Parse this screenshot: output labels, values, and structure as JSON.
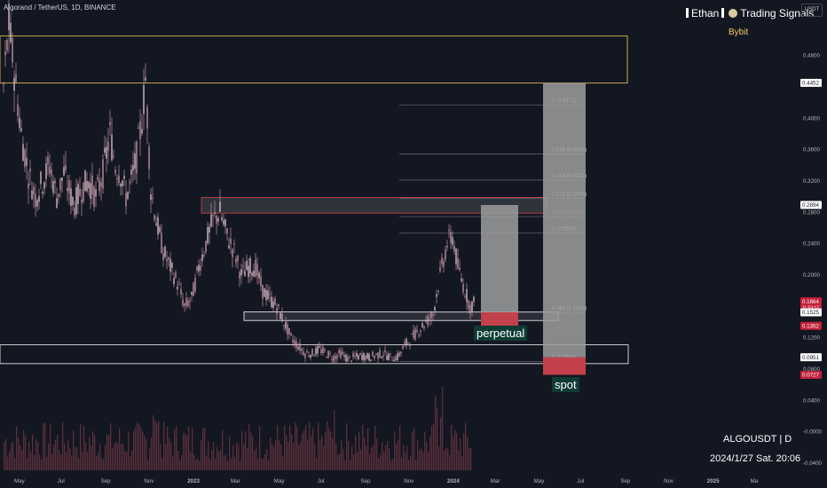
{
  "header": {
    "symbol_line": "Algorand / TetherUS, 1D, BINANCE",
    "brand_name": "Ethan",
    "brand_suffix": "Trading Signals",
    "exchange": "Bybit",
    "currency_button": "USDT",
    "watermark_symbol": "ALGOUSDT | D",
    "watermark_date": "2024/1/27 Sat. 20:06"
  },
  "colors": {
    "background": "#131722",
    "candle": "#d9a3b5",
    "volume": "#5a2f3a",
    "yellow_zone": "#d4b84a",
    "red_zone": "#c2414a",
    "white_zone": "#e0e0e0",
    "box_fill": "#9e9e9e",
    "red_box": "#c2414a"
  },
  "chart_data": {
    "type": "candlestick",
    "y_axis_ticks": [
      "0.4800",
      "0.4000",
      "0.3600",
      "0.3200",
      "0.2800",
      "0.2400",
      "0.2000",
      "0.1200",
      "0.0800",
      "0.0400",
      "-0.0000",
      "-0.0400"
    ],
    "y_axis_tick_values": [
      0.48,
      0.4,
      0.36,
      0.32,
      0.28,
      0.24,
      0.2,
      0.12,
      0.08,
      0.04,
      0.0,
      -0.04
    ],
    "x_axis_ticks": [
      "May",
      "Jul",
      "Sep",
      "Nov",
      "2023",
      "Mar",
      "May",
      "Jul",
      "Sep",
      "Nov",
      "2024",
      "Mar",
      "May",
      "Jul",
      "Sep",
      "Nov",
      "2025",
      "Ma"
    ],
    "x_axis_tick_index": [
      0,
      1,
      2,
      3,
      4,
      5,
      6,
      7,
      8,
      9,
      10,
      11,
      12,
      13,
      14,
      15,
      16,
      17
    ],
    "price_tags": [
      {
        "text": "0.4452",
        "value": 0.4452,
        "style": "white"
      },
      {
        "text": "0.2894",
        "value": 0.2894,
        "style": "white"
      },
      {
        "text": "0.1664",
        "value": 0.1664,
        "style": "red"
      },
      {
        "text": "11:53:17",
        "value": 0.159,
        "style": "red_small"
      },
      {
        "text": "0.1525",
        "value": 0.1525,
        "style": "white"
      },
      {
        "text": "0.1352",
        "value": 0.1352,
        "style": "red"
      },
      {
        "text": "0.0951",
        "value": 0.0951,
        "style": "white"
      },
      {
        "text": "0.0727",
        "value": 0.0727,
        "style": "red"
      }
    ],
    "fib_levels": [
      {
        "label": "2 (0.4171)",
        "value": 0.4171
      },
      {
        "label": "1.618 (0.3546)",
        "value": 0.3546
      },
      {
        "label": "1.414 (0.3212)",
        "value": 0.3212
      },
      {
        "label": "1.272 (0.2980)",
        "value": 0.298
      },
      {
        "label": "1.13 (0.2747)",
        "value": 0.2747
      },
      {
        "label": "1 (0.2535)",
        "value": 0.2535
      },
      {
        "label": "0.382 (0.1523)",
        "value": 0.1523
      },
      {
        "label": "0 (0.0898)",
        "value": 0.0898
      }
    ],
    "zones": [
      {
        "name": "yellow-resistance",
        "top": 0.505,
        "bottom": 0.445,
        "color": "#d4b84a"
      },
      {
        "name": "red-resistance",
        "top": 0.299,
        "bottom": 0.279,
        "color": "#c2414a"
      },
      {
        "name": "white-support-upper",
        "top": 0.153,
        "bottom": 0.142,
        "color": "#e0e0e0"
      },
      {
        "name": "white-support-lower",
        "top": 0.111,
        "bottom": 0.087,
        "color": "#e0e0e0"
      }
    ],
    "position_boxes": [
      {
        "name": "perpetual",
        "top": 0.2894,
        "entry": 0.1525,
        "stop": 0.1352
      },
      {
        "name": "spot",
        "top": 0.4452,
        "entry": 0.0951,
        "stop": 0.0727
      }
    ],
    "price_path": [
      [
        0,
        0.44
      ],
      [
        0.3,
        0.52
      ],
      [
        0.6,
        0.46
      ],
      [
        1,
        0.38
      ],
      [
        1.4,
        0.33
      ],
      [
        1.8,
        0.3
      ],
      [
        2.2,
        0.32
      ],
      [
        2.6,
        0.34
      ],
      [
        3,
        0.3
      ],
      [
        3.4,
        0.33
      ],
      [
        3.8,
        0.3
      ],
      [
        4,
        0.29
      ],
      [
        4.4,
        0.31
      ],
      [
        4.8,
        0.32
      ],
      [
        5.2,
        0.3
      ],
      [
        5.6,
        0.33
      ],
      [
        6,
        0.38
      ],
      [
        6.3,
        0.34
      ],
      [
        6.6,
        0.33
      ],
      [
        6.9,
        0.3
      ],
      [
        7.2,
        0.32
      ],
      [
        7.5,
        0.35
      ],
      [
        7.8,
        0.4
      ],
      [
        8,
        0.45
      ],
      [
        8.3,
        0.31
      ],
      [
        8.6,
        0.27
      ],
      [
        9,
        0.23
      ],
      [
        9.4,
        0.21
      ],
      [
        9.8,
        0.19
      ],
      [
        10.2,
        0.16
      ],
      [
        10.6,
        0.17
      ],
      [
        11,
        0.21
      ],
      [
        11.4,
        0.24
      ],
      [
        11.8,
        0.27
      ],
      [
        12.2,
        0.28
      ],
      [
        12.6,
        0.25
      ],
      [
        13,
        0.23
      ],
      [
        13.4,
        0.2
      ],
      [
        13.8,
        0.21
      ],
      [
        14.2,
        0.21
      ],
      [
        14.6,
        0.18
      ],
      [
        15,
        0.17
      ],
      [
        15.4,
        0.16
      ],
      [
        15.8,
        0.14
      ],
      [
        16.2,
        0.12
      ],
      [
        16.6,
        0.11
      ],
      [
        17,
        0.1
      ],
      [
        17.4,
        0.1
      ],
      [
        17.8,
        0.105
      ],
      [
        18.2,
        0.1
      ],
      [
        18.6,
        0.095
      ],
      [
        19,
        0.1
      ],
      [
        19.4,
        0.093
      ],
      [
        19.8,
        0.095
      ],
      [
        20.2,
        0.097
      ],
      [
        20.6,
        0.095
      ],
      [
        21,
        0.098
      ],
      [
        21.4,
        0.1
      ],
      [
        21.8,
        0.095
      ],
      [
        22.2,
        0.095
      ],
      [
        22.6,
        0.11
      ],
      [
        23,
        0.12
      ],
      [
        23.4,
        0.13
      ],
      [
        23.8,
        0.14
      ],
      [
        24.2,
        0.15
      ],
      [
        24.6,
        0.2
      ],
      [
        25,
        0.24
      ],
      [
        25.3,
        0.25
      ],
      [
        25.6,
        0.21
      ],
      [
        26,
        0.18
      ],
      [
        26.3,
        0.16
      ],
      [
        26.6,
        0.166
      ]
    ],
    "annotations": [
      "perpetual",
      "spot"
    ]
  }
}
